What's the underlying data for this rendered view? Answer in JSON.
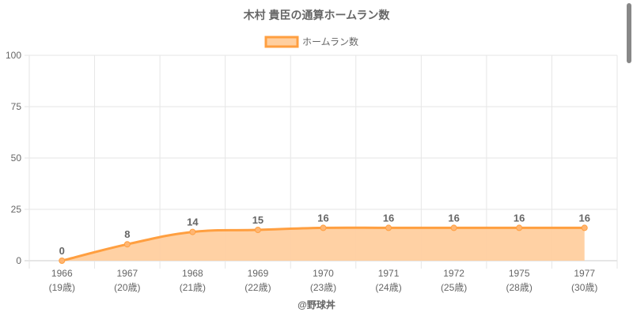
{
  "chart_data": {
    "type": "line",
    "title": "木村 貴臣の通算ホームラン数",
    "legend": {
      "label": "ホームラン数",
      "position": "top"
    },
    "categories": [
      "1966",
      "1967",
      "1968",
      "1969",
      "1970",
      "1971",
      "1972",
      "1975",
      "1977"
    ],
    "sublabels": [
      "(19歳)",
      "(20歳)",
      "(21歳)",
      "(22歳)",
      "(23歳)",
      "(24歳)",
      "(25歳)",
      "(28歳)",
      "(30歳)"
    ],
    "series": [
      {
        "name": "ホームラン数",
        "values": [
          0,
          8,
          14,
          15,
          16,
          16,
          16,
          16,
          16
        ]
      }
    ],
    "ylim": [
      0,
      100
    ],
    "yticks": [
      0,
      25,
      50,
      75,
      100
    ],
    "grid": true,
    "fill": true,
    "colors": {
      "line": "#ff9f40",
      "fill": "#ffcf9f"
    }
  },
  "footer": "@野球丼"
}
